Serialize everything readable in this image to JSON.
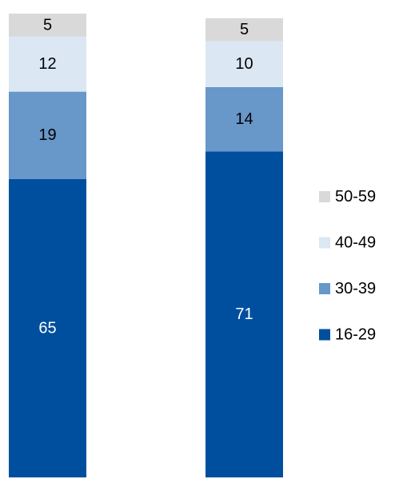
{
  "chart_data": {
    "type": "bar",
    "stacked": true,
    "unit": "%",
    "categories": [
      "",
      ""
    ],
    "series": [
      {
        "name": "16-29",
        "color": "#004f9f",
        "label_color": "#ffffff",
        "values": [
          65,
          71
        ]
      },
      {
        "name": "30-39",
        "color": "#6897c9",
        "label_color": "#000000",
        "values": [
          19,
          14
        ]
      },
      {
        "name": "40-49",
        "color": "#dbe7f3",
        "label_color": "#000000",
        "values": [
          12,
          10
        ]
      },
      {
        "name": "50-59",
        "color": "#d9d9d9",
        "label_color": "#000000",
        "values": [
          5,
          5
        ]
      }
    ],
    "legend_order": [
      "50-59",
      "40-49",
      "30-39",
      "16-29"
    ],
    "legend_position": "right",
    "title": "",
    "xlabel": "",
    "ylabel": "",
    "ylim": [
      0,
      101
    ],
    "grid": false,
    "axes_visible": false
  }
}
